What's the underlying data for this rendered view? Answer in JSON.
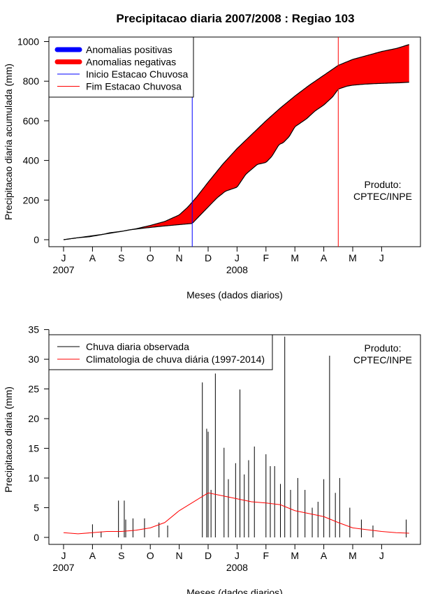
{
  "title": "Precipitacao diaria 2007/2008 : Regiao 103",
  "colors": {
    "positive": "#0000ff",
    "negative": "#ff0000",
    "start_line": "#0000ff",
    "end_line": "#ff0000",
    "observed": "#000000",
    "climatology": "#ff0000"
  },
  "chart_data": [
    {
      "type": "area",
      "title": "Precipitacao diaria 2007/2008 : Regiao 103",
      "xlabel": "Meses (dados diarios)",
      "ylabel": "Precipitacao diaria acumulada (mm)",
      "x_ticks": [
        "J",
        "A",
        "S",
        "O",
        "N",
        "D",
        "J",
        "F",
        "M",
        "A",
        "M",
        "J"
      ],
      "year_labels": [
        {
          "month_index": 0,
          "label": "2007"
        },
        {
          "month_index": 6,
          "label": "2008"
        }
      ],
      "ylim": [
        0,
        1000
      ],
      "y_ticks": [
        0,
        200,
        400,
        600,
        800,
        1000
      ],
      "legend": {
        "position": "top-left",
        "entries": [
          {
            "label": "Anomalias positivas",
            "color": "#0000ff",
            "style": "thick"
          },
          {
            "label": "Anomalias negativas",
            "color": "#ff0000",
            "style": "thick"
          },
          {
            "label": "Inicio Estacao Chuvosa",
            "color": "#0000ff",
            "style": "thin"
          },
          {
            "label": "Fim Estacao Chuvosa",
            "color": "#ff0000",
            "style": "thin"
          }
        ]
      },
      "annotation": [
        "Produto:",
        "CPTEC/INPE"
      ],
      "rainy_season_start_month": 4.45,
      "rainy_season_end_month": 9.5,
      "series": [
        {
          "name": "Climatologia acumulada",
          "month": [
            0,
            0.5,
            1,
            1.5,
            2,
            2.5,
            3,
            3.5,
            4,
            4.3,
            4.6,
            5,
            5.5,
            6,
            6.5,
            7,
            7.5,
            8,
            8.5,
            9,
            9.5,
            10,
            10.5,
            11,
            11.5,
            11.95
          ],
          "values": [
            0,
            10,
            20,
            30,
            42,
            55,
            72,
            92,
            125,
            165,
            215,
            290,
            380,
            460,
            530,
            600,
            665,
            725,
            780,
            830,
            880,
            910,
            930,
            950,
            965,
            985
          ]
        },
        {
          "name": "Chuva observada acumulada",
          "month": [
            0,
            0.5,
            0.9,
            1.3,
            1.6,
            2,
            2.3,
            2.7,
            3,
            3.4,
            3.7,
            4,
            4.3,
            4.45,
            4.7,
            5,
            5.3,
            5.6,
            6,
            6.3,
            6.7,
            7,
            7.2,
            7.45,
            7.6,
            7.8,
            8,
            8.4,
            8.7,
            9,
            9.3,
            9.5,
            9.8,
            10,
            10.4,
            10.8,
            11.2,
            11.6,
            11.95
          ],
          "values": [
            0,
            10,
            15,
            25,
            35,
            42,
            50,
            57,
            62,
            68,
            72,
            76,
            80,
            82,
            120,
            165,
            210,
            245,
            265,
            330,
            380,
            390,
            420,
            480,
            490,
            520,
            570,
            610,
            650,
            680,
            720,
            760,
            775,
            780,
            785,
            788,
            790,
            792,
            795
          ]
        }
      ]
    },
    {
      "type": "bar",
      "xlabel": "Meses (dados diarios)",
      "ylabel": "Precipitacao diaria (mm)",
      "x_ticks": [
        "J",
        "A",
        "S",
        "O",
        "N",
        "D",
        "J",
        "F",
        "M",
        "A",
        "M",
        "J"
      ],
      "year_labels": [
        {
          "month_index": 0,
          "label": "2007"
        },
        {
          "month_index": 6,
          "label": "2008"
        }
      ],
      "ylim": [
        0,
        35
      ],
      "y_ticks": [
        0,
        5,
        10,
        15,
        20,
        25,
        30,
        35
      ],
      "legend": {
        "position": "top-left",
        "entries": [
          {
            "label": "Chuva diaria observada",
            "color": "#000000"
          },
          {
            "label": "Climatologia de chuva diária (1997-2014)",
            "color": "#ff0000"
          }
        ]
      },
      "annotation": [
        "Produto:",
        "CPTEC/INPE"
      ],
      "series": [
        {
          "name": "Chuva diaria observada",
          "month": [
            1,
            1.3,
            1.9,
            2.1,
            2.15,
            2.4,
            2.8,
            3.3,
            3.6,
            4.8,
            4.95,
            5.0,
            5.1,
            5.25,
            5.55,
            5.7,
            5.95,
            6.1,
            6.25,
            6.4,
            6.6,
            7.0,
            7.15,
            7.3,
            7.5,
            7.65,
            7.85,
            8.1,
            8.35,
            8.6,
            8.8,
            9.0,
            9.2,
            9.4,
            9.55,
            9.9,
            10.3,
            10.7,
            11.85
          ],
          "values": [
            2.2,
            1.0,
            6.2,
            6.2,
            3.0,
            3.2,
            3.2,
            2.5,
            2.0,
            26.1,
            18.3,
            17.8,
            8.0,
            27.6,
            15.1,
            9.8,
            12.5,
            24.9,
            10.6,
            13.0,
            15.3,
            14.0,
            12.0,
            12.0,
            9.0,
            33.8,
            8.0,
            10.0,
            8.0,
            5.0,
            6.0,
            9.8,
            30.6,
            7.5,
            10.0,
            5.0,
            3.0,
            2.0,
            3.0
          ]
        },
        {
          "name": "Climatologia de chuva diária (1997-2014)",
          "month": [
            0,
            0.5,
            1,
            1.5,
            2,
            2.5,
            3,
            3.5,
            4,
            4.5,
            5,
            5.5,
            6,
            6.5,
            7,
            7.5,
            8,
            8.5,
            9,
            9.5,
            10,
            10.5,
            11,
            11.5,
            11.95
          ],
          "values": [
            0.8,
            0.6,
            0.8,
            1.0,
            1.0,
            1.2,
            1.6,
            2.5,
            4.5,
            6.0,
            7.5,
            7.0,
            6.5,
            6.0,
            5.8,
            5.5,
            4.5,
            4.0,
            3.5,
            2.5,
            1.6,
            1.3,
            1.0,
            0.8,
            0.7
          ]
        }
      ]
    }
  ]
}
